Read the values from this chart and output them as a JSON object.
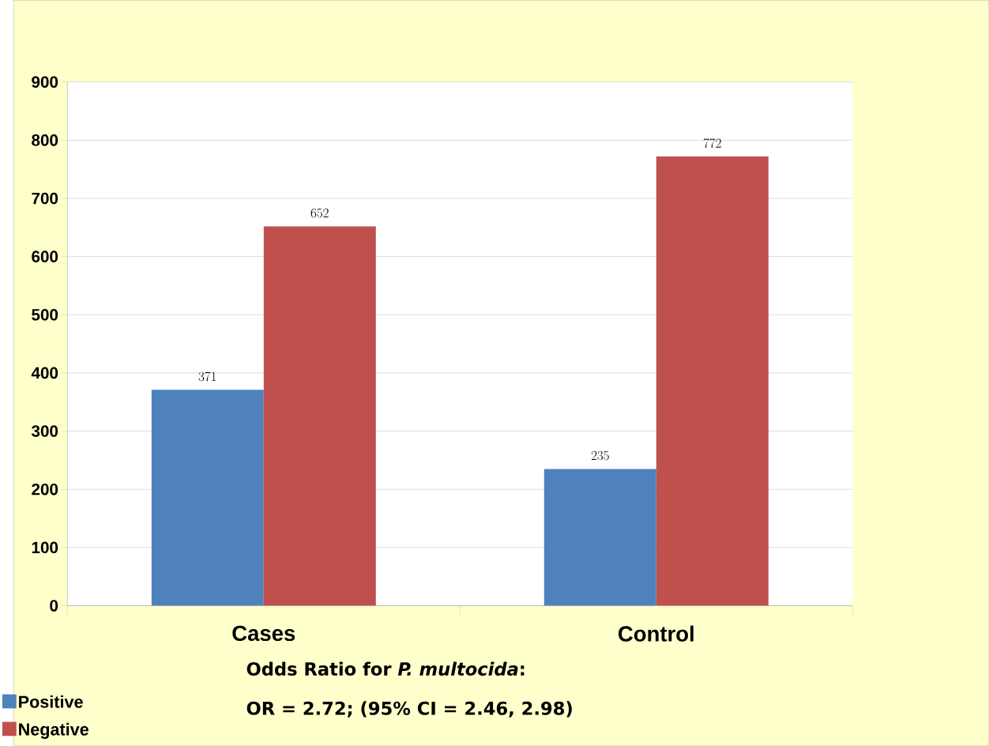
{
  "chart_data": {
    "type": "bar",
    "categories": [
      "Cases",
      "Control"
    ],
    "series": [
      {
        "name": "Positive",
        "color": "#4f81bd",
        "values": [
          371,
          235
        ]
      },
      {
        "name": "Negative",
        "color": "#c0504d",
        "values": [
          652,
          772
        ]
      }
    ],
    "ylim": [
      0,
      900
    ],
    "yticks": [
      0,
      100,
      200,
      300,
      400,
      500,
      600,
      700,
      800,
      900
    ],
    "grid": "y",
    "data_labels": true,
    "legend": "bottom left",
    "annotations": [
      "Odds Ratio for *P. multocida*:",
      "OR = 2.72;  (95% CI = 2.46, 2.98)"
    ]
  }
}
